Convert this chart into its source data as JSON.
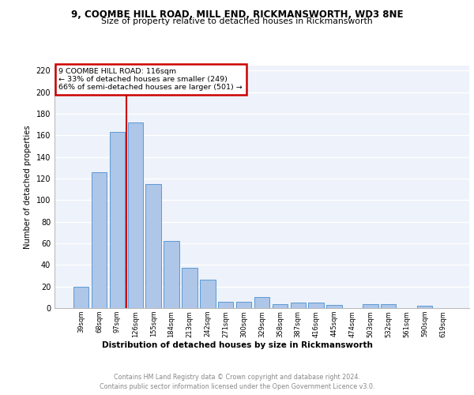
{
  "title1": "9, COOMBE HILL ROAD, MILL END, RICKMANSWORTH, WD3 8NE",
  "title2": "Size of property relative to detached houses in Rickmansworth",
  "xlabel": "Distribution of detached houses by size in Rickmansworth",
  "ylabel": "Number of detached properties",
  "categories": [
    "39sqm",
    "68sqm",
    "97sqm",
    "126sqm",
    "155sqm",
    "184sqm",
    "213sqm",
    "242sqm",
    "271sqm",
    "300sqm",
    "329sqm",
    "358sqm",
    "387sqm",
    "416sqm",
    "445sqm",
    "474sqm",
    "503sqm",
    "532sqm",
    "561sqm",
    "590sqm",
    "619sqm"
  ],
  "values": [
    20,
    126,
    163,
    172,
    115,
    62,
    37,
    26,
    6,
    6,
    10,
    4,
    5,
    5,
    3,
    0,
    4,
    4,
    0,
    2,
    0
  ],
  "bar_color": "#aec6e8",
  "bar_edge_color": "#5b9bd5",
  "annotation_text_line1": "9 COOMBE HILL ROAD: 116sqm",
  "annotation_text_line2": "← 33% of detached houses are smaller (249)",
  "annotation_text_line3": "66% of semi-detached houses are larger (501) →",
  "annotation_box_color": "#ffffff",
  "annotation_box_edge_color": "#cc0000",
  "vline_color": "#cc0000",
  "footer1": "Contains HM Land Registry data © Crown copyright and database right 2024.",
  "footer2": "Contains public sector information licensed under the Open Government Licence v3.0.",
  "ylim": [
    0,
    225
  ],
  "yticks": [
    0,
    20,
    40,
    60,
    80,
    100,
    120,
    140,
    160,
    180,
    200,
    220
  ],
  "bg_color": "#eef2fa",
  "grid_color": "#ffffff",
  "vline_x": 2.5
}
